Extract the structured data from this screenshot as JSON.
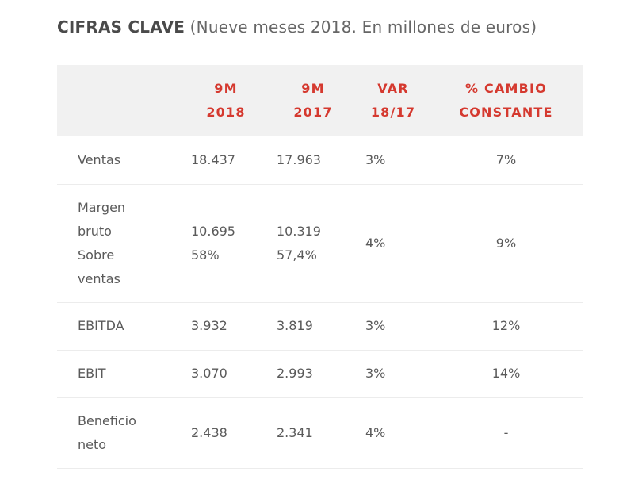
{
  "title": {
    "strong": "CIFRAS CLAVE",
    "sub": " (Nueve meses 2018. En millones de euros)"
  },
  "colors": {
    "header_text": "#d5392f",
    "header_bg": "#f1f1f1",
    "body_text": "#5a5a5a"
  },
  "table": {
    "headers": [
      {
        "lines": [
          "",
          ""
        ]
      },
      {
        "lines": [
          "9M",
          "2018"
        ]
      },
      {
        "lines": [
          "9M",
          "2017"
        ]
      },
      {
        "lines": [
          "VAR",
          "18/17"
        ]
      },
      {
        "lines": [
          "% CAMBIO",
          "CONSTANTE"
        ]
      }
    ],
    "rows": [
      {
        "label": [
          "Ventas"
        ],
        "m2018": [
          "18.437"
        ],
        "m2017": [
          "17.963"
        ],
        "var": "3%",
        "constant": "7%"
      },
      {
        "label": [
          "Margen",
          "bruto",
          "Sobre",
          "ventas"
        ],
        "m2018": [
          "10.695",
          "58%"
        ],
        "m2017": [
          "10.319",
          "57,4%"
        ],
        "var": "4%",
        "constant": "9%"
      },
      {
        "label": [
          "EBITDA"
        ],
        "m2018": [
          "3.932"
        ],
        "m2017": [
          "3.819"
        ],
        "var": "3%",
        "constant": "12%"
      },
      {
        "label": [
          "EBIT"
        ],
        "m2018": [
          "3.070"
        ],
        "m2017": [
          "2.993"
        ],
        "var": "3%",
        "constant": "14%"
      },
      {
        "label": [
          "Beneficio",
          "neto"
        ],
        "m2018": [
          "2.438"
        ],
        "m2017": [
          "2.341"
        ],
        "var": "4%",
        "constant": "-"
      }
    ]
  }
}
